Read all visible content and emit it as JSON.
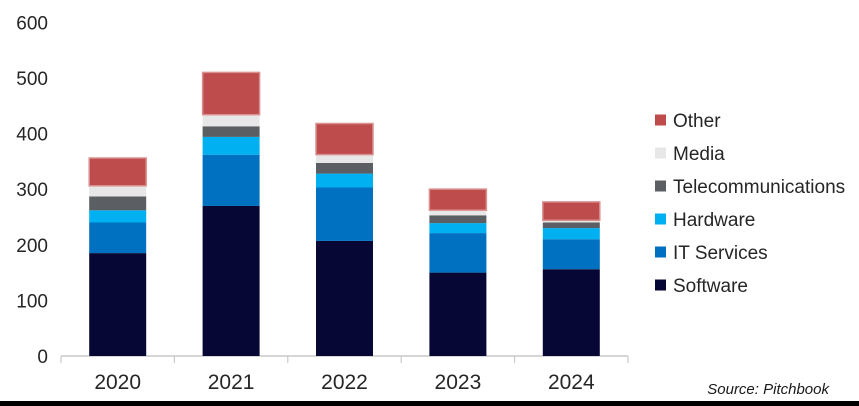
{
  "chart_data": {
    "type": "bar",
    "stacked": true,
    "title": "",
    "xlabel": "",
    "ylabel": "",
    "categories": [
      "2020",
      "2021",
      "2022",
      "2023",
      "2024"
    ],
    "series": [
      {
        "name": "Software",
        "color": "#070736",
        "values": [
          185,
          270,
          207,
          150,
          156
        ]
      },
      {
        "name": "IT Services",
        "color": "#0070C0",
        "values": [
          55,
          92,
          96,
          71,
          54
        ]
      },
      {
        "name": "Hardware",
        "color": "#00B0F0",
        "values": [
          22,
          32,
          25,
          18,
          20
        ]
      },
      {
        "name": "Telecommunications",
        "color": "#5B5F63",
        "values": [
          25,
          19,
          19,
          14,
          10
        ]
      },
      {
        "name": "Media",
        "color": "#E8E7E7",
        "values": [
          19,
          21,
          15,
          9,
          4
        ]
      },
      {
        "name": "Other",
        "color": "#BE4C4C",
        "border": "#D9918F",
        "values": [
          50,
          76,
          56,
          38,
          33
        ]
      }
    ],
    "ylim": [
      0,
      600
    ],
    "yticks": [
      0,
      100,
      200,
      300,
      400,
      500,
      600
    ],
    "grid": false,
    "legend_position": "right",
    "legend_order": [
      "Other",
      "Media",
      "Telecommunications",
      "Hardware",
      "IT Services",
      "Software"
    ]
  },
  "source_note": "Source: Pitchbook",
  "colors": {
    "axis_line": "#C9C9C9",
    "text": "#262626",
    "bottom_bar": "#000000",
    "background": "#FFFFFF"
  }
}
